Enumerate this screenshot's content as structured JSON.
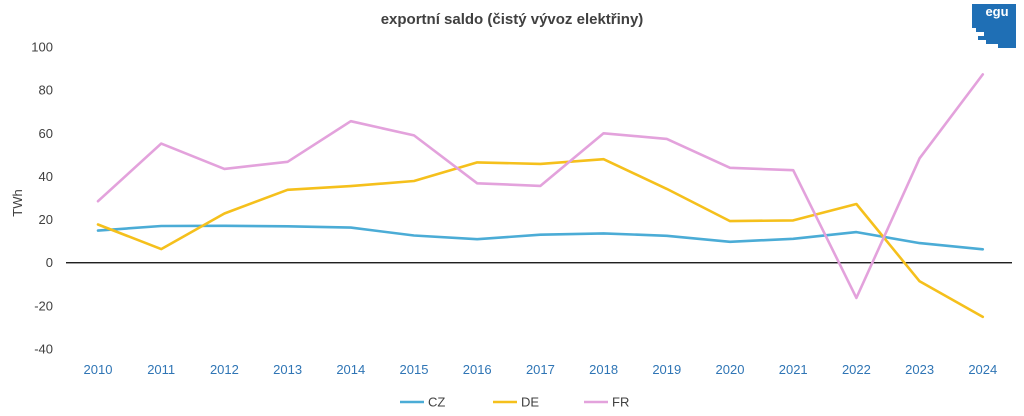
{
  "logo": {
    "text": "egu",
    "color": "#1f6fb5"
  },
  "chart_data": {
    "type": "line",
    "title": "exportní saldo (čistý vývoz elektřiny)",
    "ylabel": "TWh",
    "xlabel": "",
    "x": [
      "2010",
      "2011",
      "2012",
      "2013",
      "2014",
      "2015",
      "2016",
      "2017",
      "2018",
      "2019",
      "2020",
      "2021",
      "2022",
      "2023",
      "2024"
    ],
    "ylim": [
      -40,
      100
    ],
    "yticks": [
      -40,
      -20,
      0,
      20,
      40,
      60,
      80,
      100
    ],
    "grid": false,
    "legend": "bottom-center",
    "series": [
      {
        "name": "CZ",
        "color": "#4bacd6",
        "values": [
          14.9,
          17.0,
          17.1,
          16.9,
          16.3,
          12.6,
          10.9,
          13.0,
          13.6,
          12.5,
          9.7,
          11.1,
          14.2,
          9.1,
          6.2
        ]
      },
      {
        "name": "DE",
        "color": "#f5c01c",
        "values": [
          17.7,
          6.3,
          22.8,
          33.8,
          35.5,
          37.9,
          46.5,
          45.8,
          48.0,
          34.2,
          19.3,
          19.6,
          27.2,
          -8.6,
          -25.1
        ]
      },
      {
        "name": "FR",
        "color": "#e3a2dc",
        "values": [
          28.5,
          55.2,
          43.5,
          46.8,
          65.6,
          59.0,
          36.8,
          35.6,
          60.0,
          57.4,
          44.0,
          42.9,
          -16.3,
          48.4,
          87.3
        ]
      }
    ]
  }
}
